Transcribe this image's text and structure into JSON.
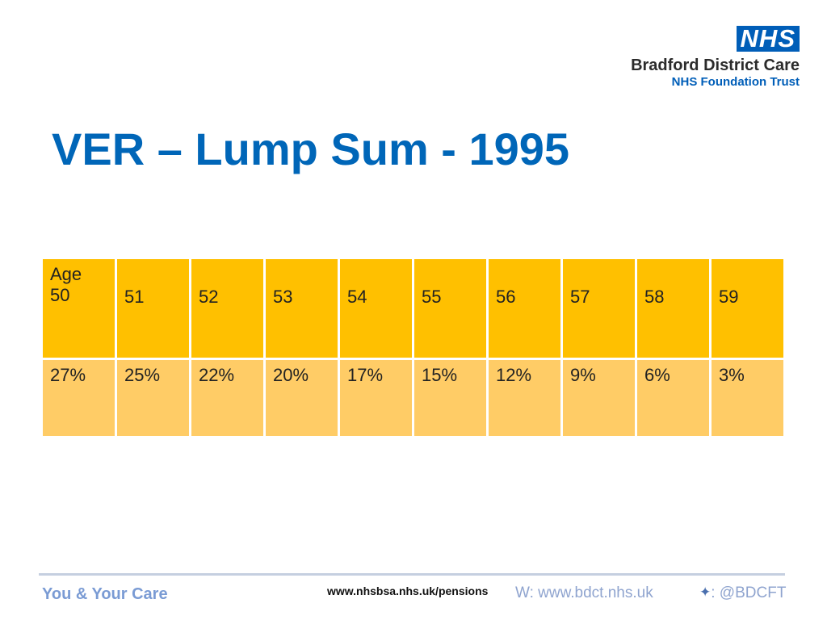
{
  "logo": {
    "badge": "NHS",
    "name": "Bradford District Care",
    "sub": "NHS Foundation Trust"
  },
  "title": "VER – Lump Sum - 1995",
  "table": {
    "age_label": "Age",
    "ages": [
      "50",
      "51",
      "52",
      "53",
      "54",
      "55",
      "56",
      "57",
      "58",
      "59"
    ],
    "percentages": [
      "27%",
      "25%",
      "22%",
      "20%",
      "17%",
      "15%",
      "12%",
      "9%",
      "6%",
      "3%"
    ]
  },
  "footer": {
    "left": "You & Your Care",
    "center_url": "www.nhsbsa.nhs.uk/pensions",
    "web": "W: www.bdct.nhs.uk",
    "twitter": ": @BDCFT"
  },
  "colors": {
    "header_fill": "#ffc000",
    "value_fill": "#ffcc66",
    "title": "#0066b8"
  }
}
